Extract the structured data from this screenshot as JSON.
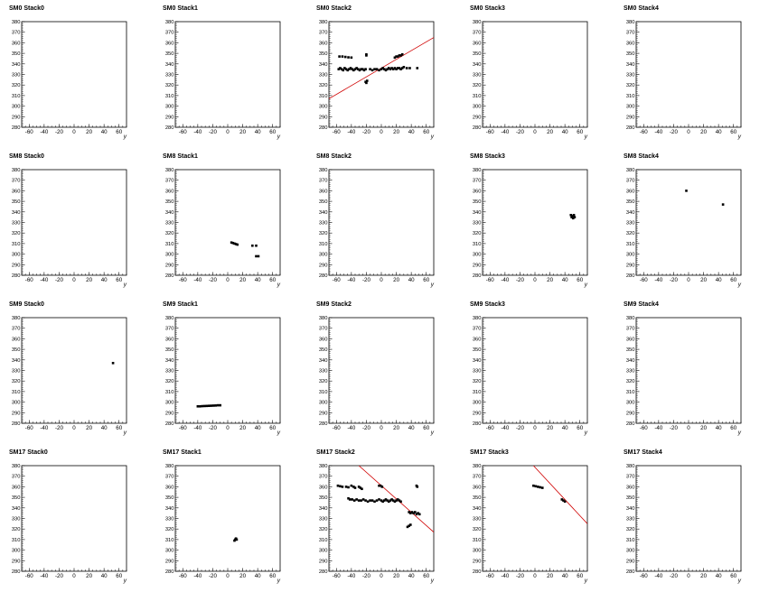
{
  "colors": {
    "fit_line": "#d00000",
    "marker": "#000000",
    "frame": "#000000"
  },
  "chart_data": [
    {
      "type": "scatter",
      "title": "SM0 Stack0",
      "xlabel": "y",
      "xlim": [
        -70,
        70
      ],
      "ylim": [
        280,
        380
      ],
      "x_ticks": [
        -60,
        -40,
        -20,
        0,
        20,
        40,
        60
      ],
      "y_ticks": [
        280,
        290,
        300,
        310,
        320,
        330,
        340,
        350,
        360,
        370,
        380
      ],
      "points": [],
      "fit_line": null
    },
    {
      "type": "scatter",
      "title": "SM0 Stack1",
      "xlabel": "y",
      "xlim": [
        -70,
        70
      ],
      "ylim": [
        280,
        380
      ],
      "x_ticks": [
        -60,
        -40,
        -20,
        0,
        20,
        40,
        60
      ],
      "y_ticks": [
        280,
        290,
        300,
        310,
        320,
        330,
        340,
        350,
        360,
        370,
        380
      ],
      "points": [],
      "fit_line": null
    },
    {
      "type": "scatter",
      "title": "SM0 Stack2",
      "xlabel": "y",
      "xlim": [
        -70,
        70
      ],
      "ylim": [
        280,
        380
      ],
      "x_ticks": [
        -60,
        -40,
        -20,
        0,
        20,
        40,
        60
      ],
      "y_ticks": [
        280,
        290,
        300,
        310,
        320,
        330,
        340,
        350,
        360,
        370,
        380
      ],
      "points": [
        [
          -56,
          347
        ],
        [
          -52,
          347
        ],
        [
          -48,
          346.6
        ],
        [
          -44,
          346.2
        ],
        [
          -40,
          346
        ],
        [
          -20,
          348
        ],
        [
          -20,
          349
        ],
        [
          -57,
          335
        ],
        [
          -55,
          336
        ],
        [
          -53,
          335
        ],
        [
          -51,
          334
        ],
        [
          -49,
          336
        ],
        [
          -47,
          335
        ],
        [
          -45,
          334
        ],
        [
          -43,
          335
        ],
        [
          -41,
          336
        ],
        [
          -39,
          335
        ],
        [
          -37,
          334
        ],
        [
          -35,
          335
        ],
        [
          -33,
          336
        ],
        [
          -31,
          335
        ],
        [
          -29,
          334
        ],
        [
          -27,
          335
        ],
        [
          -25,
          335
        ],
        [
          -23,
          334
        ],
        [
          -21,
          335
        ],
        [
          -15,
          335
        ],
        [
          -12,
          334
        ],
        [
          -9,
          335
        ],
        [
          -6,
          335
        ],
        [
          -3,
          334
        ],
        [
          0,
          335
        ],
        [
          2,
          336
        ],
        [
          4,
          335
        ],
        [
          6,
          334
        ],
        [
          8,
          335
        ],
        [
          10,
          336
        ],
        [
          12,
          335
        ],
        [
          14,
          336
        ],
        [
          16,
          335
        ],
        [
          18,
          336
        ],
        [
          20,
          335
        ],
        [
          22,
          336
        ],
        [
          24,
          336
        ],
        [
          26,
          335
        ],
        [
          28,
          336
        ],
        [
          30,
          337
        ],
        [
          34,
          336
        ],
        [
          38,
          336
        ],
        [
          48,
          336
        ],
        [
          18,
          346
        ],
        [
          20,
          347
        ],
        [
          22,
          347
        ],
        [
          24,
          348
        ],
        [
          26,
          348
        ],
        [
          28,
          349
        ],
        [
          -20,
          322
        ],
        [
          -19,
          324
        ],
        [
          -21,
          323
        ]
      ],
      "fit_line": {
        "x": [
          -70,
          70
        ],
        "y": [
          307,
          365
        ]
      }
    },
    {
      "type": "scatter",
      "title": "SM0 Stack3",
      "xlabel": "y",
      "xlim": [
        -70,
        70
      ],
      "ylim": [
        280,
        380
      ],
      "x_ticks": [
        -60,
        -40,
        -20,
        0,
        20,
        40,
        60
      ],
      "y_ticks": [
        280,
        290,
        300,
        310,
        320,
        330,
        340,
        350,
        360,
        370,
        380
      ],
      "points": [],
      "fit_line": null
    },
    {
      "type": "scatter",
      "title": "SM0 Stack4",
      "xlabel": "y",
      "xlim": [
        -70,
        70
      ],
      "ylim": [
        280,
        380
      ],
      "x_ticks": [
        -60,
        -40,
        -20,
        0,
        20,
        40,
        60
      ],
      "y_ticks": [
        280,
        290,
        300,
        310,
        320,
        330,
        340,
        350,
        360,
        370,
        380
      ],
      "points": [],
      "fit_line": null
    },
    {
      "type": "scatter",
      "title": "SM8 Stack0",
      "xlabel": "y",
      "xlim": [
        -70,
        70
      ],
      "ylim": [
        280,
        380
      ],
      "x_ticks": [
        -60,
        -40,
        -20,
        0,
        20,
        40,
        60
      ],
      "y_ticks": [
        280,
        290,
        300,
        310,
        320,
        330,
        340,
        350,
        360,
        370,
        380
      ],
      "points": [],
      "fit_line": null
    },
    {
      "type": "scatter",
      "title": "SM8 Stack1",
      "xlabel": "y",
      "xlim": [
        -70,
        70
      ],
      "ylim": [
        280,
        380
      ],
      "x_ticks": [
        -60,
        -40,
        -20,
        0,
        20,
        40,
        60
      ],
      "y_ticks": [
        280,
        290,
        300,
        310,
        320,
        330,
        340,
        350,
        360,
        370,
        380
      ],
      "points": [
        [
          5,
          311
        ],
        [
          7,
          310.5
        ],
        [
          9,
          310
        ],
        [
          11,
          309.5
        ],
        [
          13,
          309
        ],
        [
          33,
          308
        ],
        [
          38,
          308
        ],
        [
          38,
          298
        ],
        [
          41,
          298
        ]
      ],
      "fit_line": null
    },
    {
      "type": "scatter",
      "title": "SM8 Stack2",
      "xlabel": "y",
      "xlim": [
        -70,
        70
      ],
      "ylim": [
        280,
        380
      ],
      "x_ticks": [
        -60,
        -40,
        -20,
        0,
        20,
        40,
        60
      ],
      "y_ticks": [
        280,
        290,
        300,
        310,
        320,
        330,
        340,
        350,
        360,
        370,
        380
      ],
      "points": [],
      "fit_line": null
    },
    {
      "type": "scatter",
      "title": "SM8 Stack3",
      "xlabel": "y",
      "xlim": [
        -70,
        70
      ],
      "ylim": [
        280,
        380
      ],
      "x_ticks": [
        -60,
        -40,
        -20,
        0,
        20,
        40,
        60
      ],
      "y_ticks": [
        280,
        290,
        300,
        310,
        320,
        330,
        340,
        350,
        360,
        370,
        380
      ],
      "points": [
        [
          48,
          337
        ],
        [
          50,
          336
        ],
        [
          52,
          337
        ],
        [
          49,
          335
        ],
        [
          51,
          334
        ],
        [
          53,
          335
        ]
      ],
      "fit_line": null
    },
    {
      "type": "scatter",
      "title": "SM8 Stack4",
      "xlabel": "y",
      "xlim": [
        -70,
        70
      ],
      "ylim": [
        280,
        380
      ],
      "x_ticks": [
        -60,
        -40,
        -20,
        0,
        20,
        40,
        60
      ],
      "y_ticks": [
        280,
        290,
        300,
        310,
        320,
        330,
        340,
        350,
        360,
        370,
        380
      ],
      "points": [
        [
          -3,
          360
        ],
        [
          46,
          347
        ]
      ],
      "fit_line": null
    },
    {
      "type": "scatter",
      "title": "SM9 Stack0",
      "xlabel": "y",
      "xlim": [
        -70,
        70
      ],
      "ylim": [
        280,
        380
      ],
      "x_ticks": [
        -60,
        -40,
        -20,
        0,
        20,
        40,
        60
      ],
      "y_ticks": [
        280,
        290,
        300,
        310,
        320,
        330,
        340,
        350,
        360,
        370,
        380
      ],
      "points": [
        [
          52,
          337
        ]
      ],
      "fit_line": null
    },
    {
      "type": "scatter",
      "title": "SM9 Stack1",
      "xlabel": "y",
      "xlim": [
        -70,
        70
      ],
      "ylim": [
        280,
        380
      ],
      "x_ticks": [
        -60,
        -40,
        -20,
        0,
        20,
        40,
        60
      ],
      "y_ticks": [
        280,
        290,
        300,
        310,
        320,
        330,
        340,
        350,
        360,
        370,
        380
      ],
      "points": [
        [
          -40,
          296
        ],
        [
          -37,
          296
        ],
        [
          -34,
          296.2
        ],
        [
          -31,
          296.3
        ],
        [
          -28,
          296.4
        ],
        [
          -25,
          296.5
        ],
        [
          -22,
          296.6
        ],
        [
          -19,
          296.7
        ],
        [
          -16,
          296.8
        ],
        [
          -13,
          297
        ],
        [
          -10,
          297
        ]
      ],
      "fit_line": null
    },
    {
      "type": "scatter",
      "title": "SM9 Stack2",
      "xlabel": "y",
      "xlim": [
        -70,
        70
      ],
      "ylim": [
        280,
        380
      ],
      "x_ticks": [
        -60,
        -40,
        -20,
        0,
        20,
        40,
        60
      ],
      "y_ticks": [
        280,
        290,
        300,
        310,
        320,
        330,
        340,
        350,
        360,
        370,
        380
      ],
      "points": [],
      "fit_line": null
    },
    {
      "type": "scatter",
      "title": "SM9 Stack3",
      "xlabel": "y",
      "xlim": [
        -70,
        70
      ],
      "ylim": [
        280,
        380
      ],
      "x_ticks": [
        -60,
        -40,
        -20,
        0,
        20,
        40,
        60
      ],
      "y_ticks": [
        280,
        290,
        300,
        310,
        320,
        330,
        340,
        350,
        360,
        370,
        380
      ],
      "points": [],
      "fit_line": null
    },
    {
      "type": "scatter",
      "title": "SM9 Stack4",
      "xlabel": "y",
      "xlim": [
        -70,
        70
      ],
      "ylim": [
        280,
        380
      ],
      "x_ticks": [
        -60,
        -40,
        -20,
        0,
        20,
        40,
        60
      ],
      "y_ticks": [
        280,
        290,
        300,
        310,
        320,
        330,
        340,
        350,
        360,
        370,
        380
      ],
      "points": [],
      "fit_line": null
    },
    {
      "type": "scatter",
      "title": "SM17 Stack0",
      "xlabel": "y",
      "xlim": [
        -70,
        70
      ],
      "ylim": [
        280,
        380
      ],
      "x_ticks": [
        -60,
        -40,
        -20,
        0,
        20,
        40,
        60
      ],
      "y_ticks": [
        280,
        290,
        300,
        310,
        320,
        330,
        340,
        350,
        360,
        370,
        380
      ],
      "points": [],
      "fit_line": null
    },
    {
      "type": "scatter",
      "title": "SM17 Stack1",
      "xlabel": "y",
      "xlim": [
        -70,
        70
      ],
      "ylim": [
        280,
        380
      ],
      "x_ticks": [
        -60,
        -40,
        -20,
        0,
        20,
        40,
        60
      ],
      "y_ticks": [
        280,
        290,
        300,
        310,
        320,
        330,
        340,
        350,
        360,
        370,
        380
      ],
      "points": [
        [
          9,
          309
        ],
        [
          10,
          310
        ],
        [
          11,
          311
        ],
        [
          12,
          310
        ]
      ],
      "fit_line": null
    },
    {
      "type": "scatter",
      "title": "SM17 Stack2",
      "xlabel": "y",
      "xlim": [
        -70,
        70
      ],
      "ylim": [
        280,
        380
      ],
      "x_ticks": [
        -60,
        -40,
        -20,
        0,
        20,
        40,
        60
      ],
      "y_ticks": [
        280,
        290,
        300,
        310,
        320,
        330,
        340,
        350,
        360,
        370,
        380
      ],
      "points": [
        [
          -58,
          361
        ],
        [
          -55,
          360.5
        ],
        [
          -52,
          360
        ],
        [
          -47,
          360
        ],
        [
          -44,
          359.5
        ],
        [
          -40,
          361
        ],
        [
          -37,
          360
        ],
        [
          -35,
          359
        ],
        [
          -30,
          360
        ],
        [
          -28,
          359
        ],
        [
          -26,
          358
        ],
        [
          -3,
          361
        ],
        [
          -1,
          361
        ],
        [
          1,
          360
        ],
        [
          47,
          361
        ],
        [
          48,
          360
        ],
        [
          -44,
          349
        ],
        [
          -42,
          348
        ],
        [
          -39,
          348
        ],
        [
          -36,
          347
        ],
        [
          -33,
          348
        ],
        [
          -30,
          347
        ],
        [
          -27,
          347
        ],
        [
          -24,
          348
        ],
        [
          -21,
          347
        ],
        [
          -18,
          346
        ],
        [
          -15,
          347
        ],
        [
          -12,
          347
        ],
        [
          -9,
          346
        ],
        [
          -6,
          347
        ],
        [
          -3,
          348
        ],
        [
          0,
          347
        ],
        [
          2,
          346
        ],
        [
          4,
          347
        ],
        [
          6,
          348
        ],
        [
          8,
          347
        ],
        [
          10,
          346
        ],
        [
          12,
          347
        ],
        [
          14,
          348
        ],
        [
          16,
          347
        ],
        [
          18,
          346
        ],
        [
          20,
          347
        ],
        [
          22,
          348
        ],
        [
          24,
          347
        ],
        [
          26,
          346
        ],
        [
          37,
          336
        ],
        [
          39,
          335
        ],
        [
          41,
          336
        ],
        [
          43,
          335
        ],
        [
          45,
          336
        ],
        [
          47,
          334
        ],
        [
          49,
          335
        ],
        [
          51,
          334
        ],
        [
          35,
          322
        ],
        [
          37,
          323
        ],
        [
          39,
          324
        ]
      ],
      "fit_line": {
        "x": [
          -30,
          70
        ],
        "y": [
          380,
          317
        ]
      }
    },
    {
      "type": "scatter",
      "title": "SM17 Stack3",
      "xlabel": "y",
      "xlim": [
        -70,
        70
      ],
      "ylim": [
        280,
        380
      ],
      "x_ticks": [
        -60,
        -40,
        -20,
        0,
        20,
        40,
        60
      ],
      "y_ticks": [
        280,
        290,
        300,
        310,
        320,
        330,
        340,
        350,
        360,
        370,
        380
      ],
      "points": [
        [
          -2,
          361
        ],
        [
          1,
          360.5
        ],
        [
          4,
          360
        ],
        [
          7,
          359.5
        ],
        [
          10,
          359
        ],
        [
          36,
          348
        ],
        [
          38,
          347
        ],
        [
          40,
          346
        ]
      ],
      "fit_line": {
        "x": [
          -2,
          70
        ],
        "y": [
          380,
          325
        ]
      }
    },
    {
      "type": "scatter",
      "title": "SM17 Stack4",
      "xlabel": "y",
      "xlim": [
        -70,
        70
      ],
      "ylim": [
        280,
        380
      ],
      "x_ticks": [
        -60,
        -40,
        -20,
        0,
        20,
        40,
        60
      ],
      "y_ticks": [
        280,
        290,
        300,
        310,
        320,
        330,
        340,
        350,
        360,
        370,
        380
      ],
      "points": [],
      "fit_line": null
    }
  ]
}
